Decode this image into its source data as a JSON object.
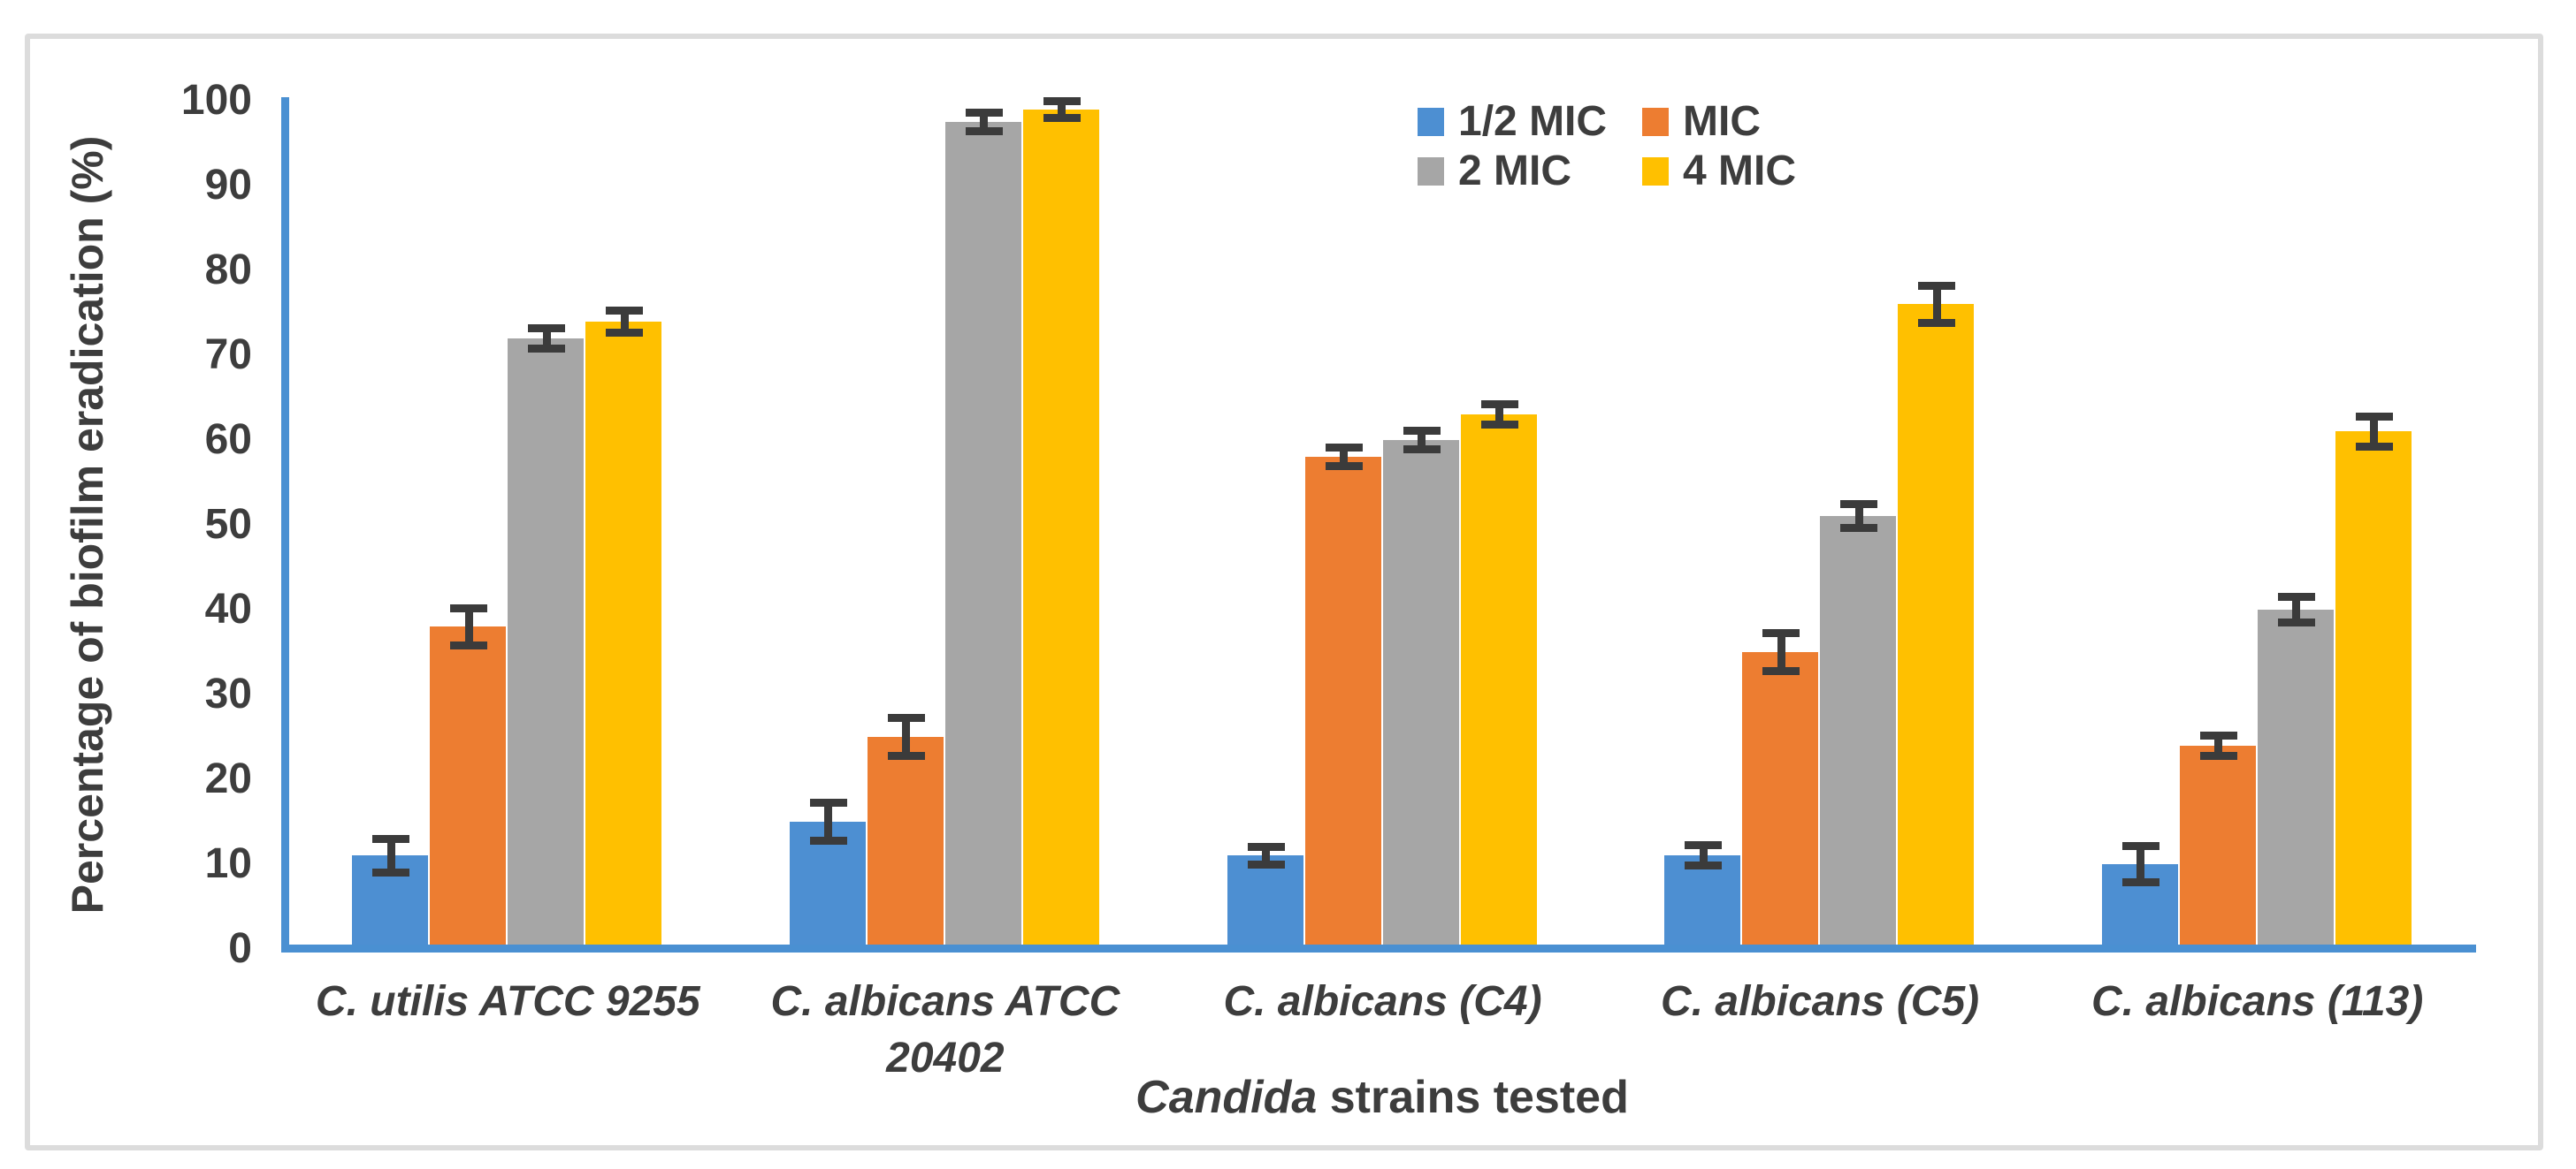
{
  "figure": {
    "background_color": "#ffffff",
    "frame_border_color": "#dcdcdc",
    "text_color": "#3d3d3d",
    "axis_line_color": "#4a90d2",
    "error_bar_color": "#3b3b3b"
  },
  "chart_data": {
    "type": "bar",
    "title": "",
    "ylabel": "Percentage of biofilm eradication (%)",
    "xlabel_italic": "Candida",
    "xlabel_rest": " strains tested",
    "ylim": [
      0,
      100
    ],
    "yticks": [
      0,
      10,
      20,
      30,
      40,
      50,
      60,
      70,
      80,
      90,
      100
    ],
    "grid": false,
    "legend_position": "top-center",
    "categories": [
      "C. utilis ATCC 9255",
      "C. albicans ATCC 20402",
      "C. albicans (C4)",
      "C. albicans (C5)",
      "C. albicans (113)"
    ],
    "category_label_lines": [
      [
        "C. utilis ATCC 9255"
      ],
      [
        "C. albicans ATCC",
        "20402"
      ],
      [
        "C. albicans (C4)"
      ],
      [
        "C. albicans (C5)"
      ],
      [
        "C. albicans (113)"
      ]
    ],
    "series": [
      {
        "name": "1/2 MIC",
        "color": "#4d8fd2",
        "values": [
          11,
          15,
          11,
          11,
          10
        ],
        "errors": [
          2.0,
          2.2,
          1.0,
          1.2,
          2.1
        ]
      },
      {
        "name": "MIC",
        "color": "#ed7d31",
        "values": [
          38,
          25,
          58,
          35,
          24
        ],
        "errors": [
          2.2,
          2.2,
          1.1,
          2.2,
          1.2
        ]
      },
      {
        "name": "2 MIC",
        "color": "#a6a6a6",
        "values": [
          72,
          97.5,
          60,
          51,
          40
        ],
        "errors": [
          1.2,
          1.1,
          1.1,
          1.4,
          1.5
        ]
      },
      {
        "name": "4 MIC",
        "color": "#ffc000",
        "values": [
          74,
          99,
          63,
          76,
          61
        ],
        "errors": [
          1.3,
          1.0,
          1.2,
          2.2,
          1.8
        ]
      }
    ]
  }
}
